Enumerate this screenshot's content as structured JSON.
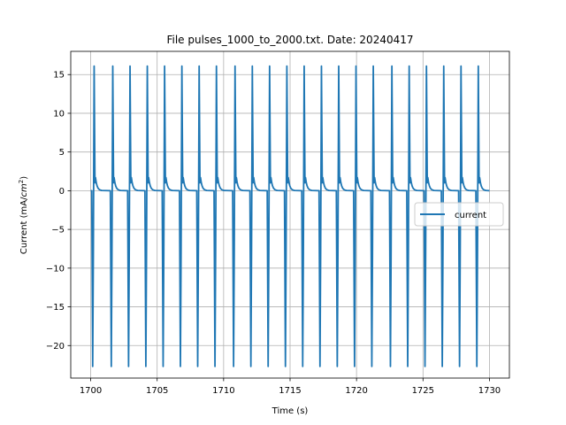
{
  "chart_data": {
    "type": "line",
    "title": "File pulses_1000_to_2000.txt. Date: 20240417",
    "xlabel": "Time (s)",
    "ylabel_prefix": "Current (mA/",
    "ylabel_unit_base": "cm",
    "ylabel_unit_exp": "2",
    "ylabel_suffix": ")",
    "xlim": [
      1698.5,
      1731.5
    ],
    "ylim": [
      -24.2,
      18.0
    ],
    "xticks": [
      1700,
      1705,
      1710,
      1715,
      1720,
      1725,
      1730
    ],
    "xtick_labels": [
      "1700",
      "1705",
      "1710",
      "1715",
      "1720",
      "1725",
      "1730"
    ],
    "yticks": [
      15,
      10,
      5,
      0,
      -5,
      -10,
      -15,
      -20
    ],
    "ytick_labels": [
      "15",
      "10",
      "5",
      "0",
      "−5",
      "−10",
      "−15",
      "−20"
    ],
    "grid": true,
    "legend_position": "center-right",
    "series": [
      {
        "name": "current",
        "color": "#1f77b4",
        "pulse_times": [
          1700.2,
          1701.6,
          1702.9,
          1704.2,
          1705.5,
          1706.8,
          1708.1,
          1709.4,
          1710.8,
          1712.1,
          1713.4,
          1714.7,
          1716.0,
          1717.3,
          1718.6,
          1719.9,
          1721.2,
          1722.6,
          1723.9,
          1725.2,
          1726.5,
          1727.8,
          1729.1
        ],
        "peak_value": 16.1,
        "trough_value": -22.7,
        "shoulder_value": 1.7,
        "baseline_value": 0.0,
        "t_start": 1700.0,
        "t_end": 1730.0
      }
    ]
  }
}
